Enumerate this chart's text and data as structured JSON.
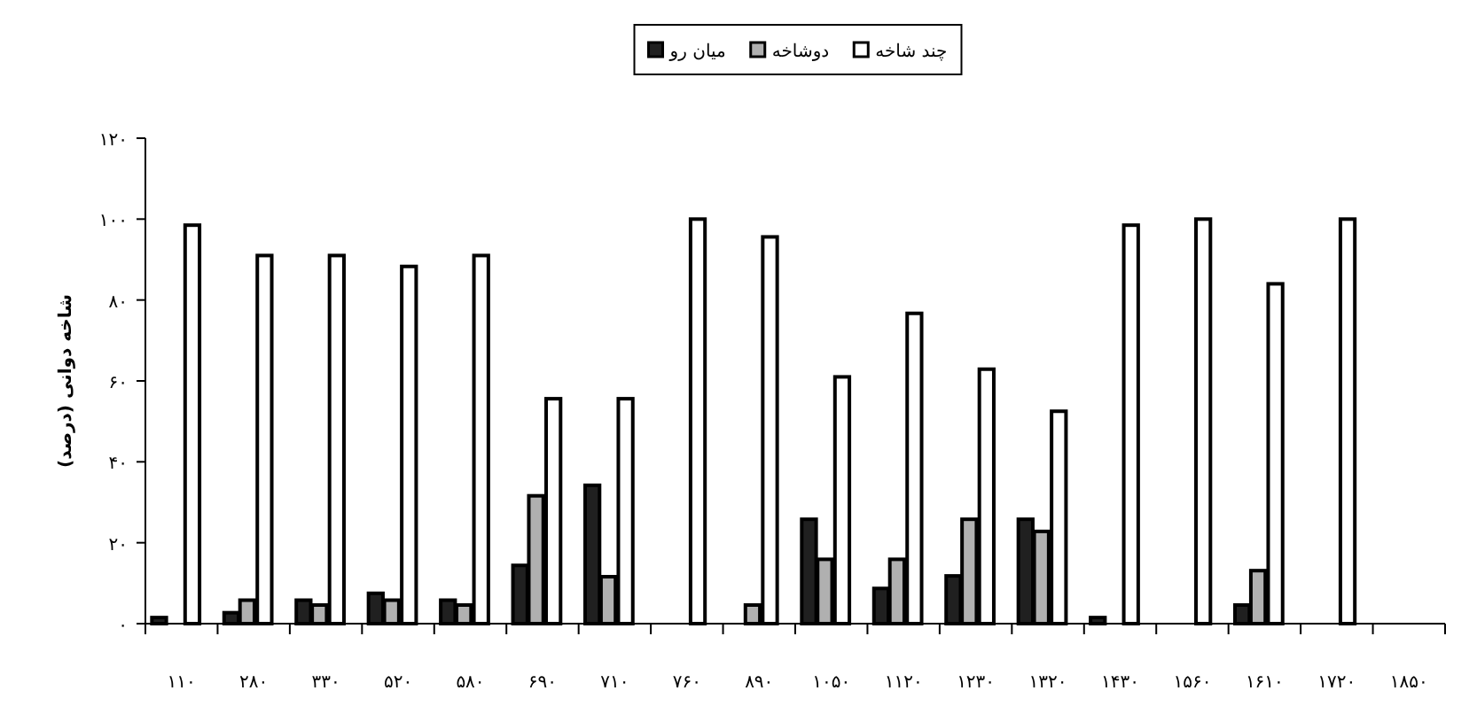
{
  "chart_data": {
    "type": "bar",
    "ylabel": "شاخه دوانی (درصد)",
    "categories": [
      "۱۱۰",
      "۲۸۰",
      "۳۳۰",
      "۵۲۰",
      "۵۸۰",
      "۶۹۰",
      "۷۱۰",
      "۷۶۰",
      "۸۹۰",
      "۱۰۵۰",
      "۱۱۲۰",
      "۱۲۳۰",
      "۱۳۲۰",
      "۱۴۳۰",
      "۱۵۶۰",
      "۱۶۱۰",
      "۱۷۲۰",
      "۱۸۵۰"
    ],
    "series": [
      {
        "name": "میان رو",
        "color": "#202020",
        "values": [
          1.5,
          2.7,
          5.8,
          7.5,
          5.8,
          14.4,
          34.2,
          null,
          null,
          25.8,
          8.7,
          11.8,
          25.8,
          1.5,
          null,
          4.6,
          null,
          null
        ]
      },
      {
        "name": "دوشاخه",
        "color": "#b0b0b0",
        "values": [
          null,
          5.8,
          4.6,
          5.8,
          4.6,
          31.6,
          11.6,
          null,
          4.6,
          15.9,
          15.9,
          25.8,
          22.8,
          null,
          null,
          13.1,
          null,
          null
        ]
      },
      {
        "name": "چند شاخه",
        "color": "#ffffff",
        "values": [
          98.5,
          91,
          91,
          88.3,
          91,
          55.6,
          55.6,
          100,
          95.6,
          61,
          76.7,
          62.9,
          52.5,
          98.5,
          100,
          84,
          100,
          null
        ]
      }
    ],
    "ylim": [
      0,
      120
    ],
    "yticks": [
      {
        "value": 0,
        "label": "۰"
      },
      {
        "value": 20,
        "label": "۲۰"
      },
      {
        "value": 40,
        "label": "۴۰"
      },
      {
        "value": 60,
        "label": "۶۰"
      },
      {
        "value": 80,
        "label": "۸۰"
      },
      {
        "value": 100,
        "label": "۱۰۰"
      },
      {
        "value": 120,
        "label": "۱۲۰"
      }
    ],
    "grid": false,
    "legend": "top"
  }
}
